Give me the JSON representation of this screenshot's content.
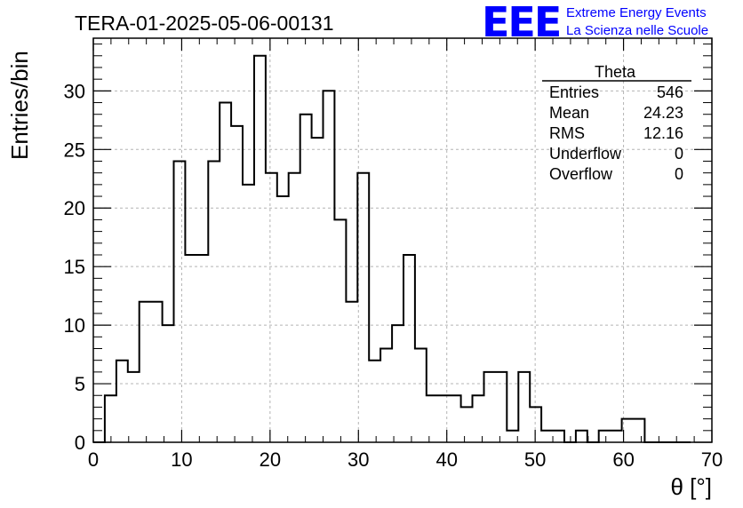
{
  "chart_data": {
    "type": "bar",
    "title": "TERA-01-2025-05-06-00131",
    "xlabel": "θ [°]",
    "ylabel": "Entries/bin",
    "xlim": [
      0,
      70
    ],
    "ylim": [
      0,
      34.5
    ],
    "grid": true,
    "bin_edges": [
      0,
      1.3,
      2.6,
      3.9,
      5.2,
      6.5,
      7.8,
      9.1,
      10.4,
      11.7,
      13,
      14.3,
      15.6,
      16.9,
      18.2,
      19.5,
      20.8,
      22.1,
      23.4,
      24.7,
      26,
      27.3,
      28.6,
      29.9,
      31.2,
      32.5,
      33.8,
      35.1,
      36.4,
      37.7,
      39,
      40.3,
      41.6,
      42.9,
      44.2,
      45.5,
      46.8,
      48.1,
      49.4,
      50.7,
      52,
      53.3,
      54.6,
      55.9,
      57.2,
      58.5,
      59.8,
      61.1,
      62.4,
      63.7,
      65,
      66.3,
      67.6
    ],
    "values": [
      0,
      4,
      7,
      6,
      12,
      12,
      10,
      24,
      16,
      16,
      24,
      29,
      27,
      22,
      33,
      23,
      21,
      23,
      28,
      26,
      30,
      19,
      12,
      23,
      7,
      8,
      10,
      16,
      8,
      4,
      4,
      4,
      3,
      4,
      6,
      6,
      1,
      6,
      3,
      1,
      1,
      0,
      1,
      0,
      1,
      1,
      2,
      2,
      0,
      0,
      0,
      0
    ],
    "x_ticks": [
      "0",
      "10",
      "20",
      "30",
      "40",
      "50",
      "60",
      "70"
    ],
    "y_ticks": [
      "0",
      "5",
      "10",
      "15",
      "20",
      "25",
      "30"
    ],
    "stats_box": {
      "title": "Theta",
      "rows": [
        {
          "label": "Entries",
          "value": "546"
        },
        {
          "label": "Mean",
          "value": "24.23"
        },
        {
          "label": "RMS",
          "value": "12.16"
        },
        {
          "label": "Underflow",
          "value": "0"
        },
        {
          "label": "Overflow",
          "value": "0"
        }
      ],
      "position": "top-right"
    }
  },
  "logo": {
    "mark": "EEE",
    "line1": "Extreme Energy Events",
    "line2": "La Scienza nelle Scuole",
    "color": "#0000ff"
  }
}
